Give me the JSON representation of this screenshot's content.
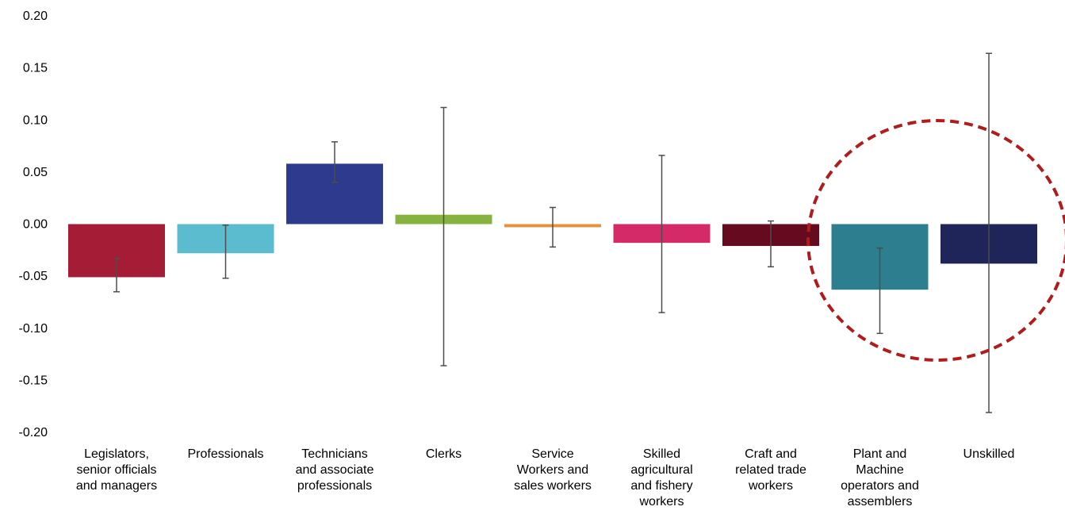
{
  "chart_data": {
    "type": "bar",
    "title": "",
    "xlabel": "",
    "ylabel": "",
    "ylim": [
      -0.2,
      0.2
    ],
    "yticks": [
      "0.20",
      "0.15",
      "0.10",
      "0.05",
      "0.00",
      "-0.05",
      "-0.10",
      "-0.15",
      "-0.20"
    ],
    "grid": false,
    "categories": [
      "Legislators, senior officials and managers",
      "Professionals",
      "Technicians and associate professionals",
      "Clerks",
      "Service Workers and sales workers",
      "Skilled agricultural and fishery workers",
      "Craft and related trade workers",
      "Plant and Machine operators and assemblers",
      "Unskilled"
    ],
    "category_lines": [
      [
        "Legislators,",
        "senior officials",
        "and managers"
      ],
      [
        "Professionals"
      ],
      [
        "Technicians",
        "and associate",
        "professionals"
      ],
      [
        "Clerks"
      ],
      [
        "Service",
        "Workers and",
        "sales workers"
      ],
      [
        "Skilled",
        "agricultural",
        "and fishery",
        "workers"
      ],
      [
        "Craft and",
        "related trade",
        "workers"
      ],
      [
        "Plant and",
        "Machine",
        "operators and",
        "assemblers"
      ],
      [
        "Unskilled"
      ]
    ],
    "values": [
      -0.051,
      -0.028,
      0.058,
      0.009,
      -0.003,
      -0.018,
      -0.021,
      -0.063,
      -0.038
    ],
    "error_low": [
      -0.065,
      -0.052,
      0.04,
      -0.136,
      -0.022,
      -0.085,
      -0.041,
      -0.105,
      -0.181
    ],
    "error_high": [
      -0.033,
      -0.001,
      0.079,
      0.112,
      0.016,
      0.066,
      0.003,
      -0.023,
      0.164
    ],
    "colors": [
      "#A51C36",
      "#5BBCD0",
      "#2D3A8E",
      "#86B33D",
      "#E8903A",
      "#D42A68",
      "#650A1F",
      "#2D7E8E",
      "#1F2459"
    ],
    "annotation": {
      "shape": "dashed-ellipse",
      "color": "#B01C1C",
      "highlights": [
        "Plant and Machine operators and assemblers",
        "Unskilled"
      ]
    }
  }
}
